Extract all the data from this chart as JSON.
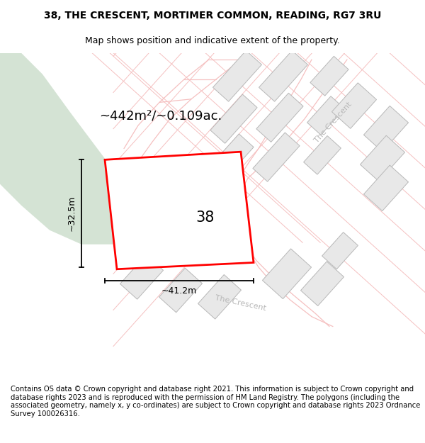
{
  "title_line1": "38, THE CRESCENT, MORTIMER COMMON, READING, RG7 3RU",
  "title_line2": "Map shows position and indicative extent of the property.",
  "footer_text": "Contains OS data © Crown copyright and database right 2021. This information is subject to Crown copyright and database rights 2023 and is reproduced with the permission of HM Land Registry. The polygons (including the associated geometry, namely x, y co-ordinates) are subject to Crown copyright and database rights 2023 Ordnance Survey 100026316.",
  "area_label": "~442m²/~0.109ac.",
  "property_number": "38",
  "width_label": "~41.2m",
  "height_label": "~32.5m",
  "background_color": "#ffffff",
  "green_area_color": "#d4e3d4",
  "plot_outline_color": "#ff0000",
  "road_line_color": "#f5c0c0",
  "block_color": "#e8e8e8",
  "block_outline": "#b8b8b8",
  "road_label_color": "#b8b8b8",
  "title_fontsize": 10,
  "subtitle_fontsize": 9,
  "footer_fontsize": 7.2
}
